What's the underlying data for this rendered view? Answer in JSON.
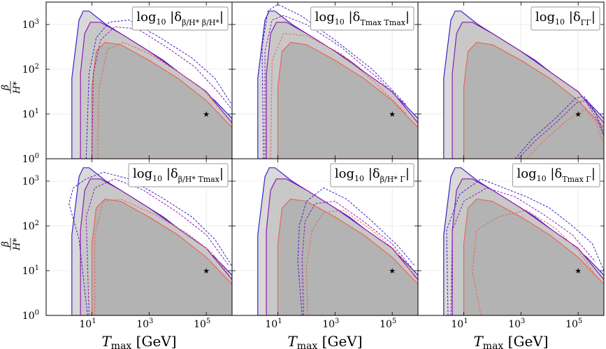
{
  "chart_data": {
    "type": "contour",
    "layout": "2 rows x 3 columns",
    "xlabel": "T_max [GeV]",
    "xlabel_main": "T",
    "xlabel_sub": "max",
    "xlabel_unit": "[GeV]",
    "ylabel": "β/H*",
    "ylabel_num": "β",
    "ylabel_den": "H*",
    "x_scale": "log10",
    "y_scale": "log10",
    "xlim_log10": [
      -0.6,
      5.9
    ],
    "ylim_log10": [
      0,
      3.5
    ],
    "x_ticks": [
      {
        "base": "10",
        "exp": "1",
        "log": 1
      },
      {
        "base": "10",
        "exp": "3",
        "log": 3
      },
      {
        "base": "10",
        "exp": "5",
        "log": 5
      }
    ],
    "y_ticks": [
      {
        "base": "10",
        "exp": "0",
        "log": 0
      },
      {
        "base": "10",
        "exp": "1",
        "log": 1
      },
      {
        "base": "10",
        "exp": "2",
        "log": 2
      },
      {
        "base": "10",
        "exp": "3",
        "log": 3
      }
    ],
    "benchmark_point_log10": [
      5,
      1
    ],
    "colors": {
      "fill_outer": "#d9d9d9",
      "fill_inner": "#c8c8c8",
      "fill_core": "#b3b3b3",
      "blue": "#3a22c8",
      "purple": "#8a1ab0",
      "red": "#e8665a",
      "grid": "#e6e6e6"
    },
    "regions": {
      "outer_solid_blue": [
        [
          0.3,
          0
        ],
        [
          0.3,
          1.8
        ],
        [
          0.55,
          3.1
        ],
        [
          0.7,
          3.3
        ],
        [
          0.9,
          3.3
        ],
        [
          1.5,
          3.0
        ],
        [
          2.5,
          2.6
        ],
        [
          3.5,
          2.2
        ],
        [
          4.5,
          1.7
        ],
        [
          5.3,
          1.3
        ],
        [
          5.9,
          0.9
        ],
        [
          5.9,
          0
        ]
      ],
      "middle_solid_purple": [
        [
          0.6,
          0
        ],
        [
          0.6,
          1.9
        ],
        [
          0.75,
          2.8
        ],
        [
          0.95,
          3.05
        ],
        [
          1.3,
          3.05
        ],
        [
          2,
          2.8
        ],
        [
          3,
          2.4
        ],
        [
          4,
          1.95
        ],
        [
          5,
          1.5
        ],
        [
          5.9,
          0.8
        ],
        [
          5.9,
          0
        ]
      ],
      "inner_solid_red": [
        [
          1.0,
          0
        ],
        [
          1.0,
          1.6
        ],
        [
          1.15,
          2.4
        ],
        [
          1.45,
          2.6
        ],
        [
          2.0,
          2.55
        ],
        [
          3,
          2.2
        ],
        [
          4,
          1.8
        ],
        [
          5,
          1.3
        ],
        [
          5.9,
          0.7
        ],
        [
          5.9,
          0
        ]
      ]
    },
    "panels": [
      {
        "title": "log10 |δ_(β/H*)(β/H*)|",
        "legend_main": "log",
        "legend_10": "10",
        "legend_delta": "|δ",
        "legend_sub": "β/H* β/H*",
        "legend_close": "|",
        "dashed": {
          "blue": [
            [
              0.8,
              0
            ],
            [
              0.9,
              1.9
            ],
            [
              1.15,
              2.7
            ],
            [
              1.6,
              3.05
            ],
            [
              2.3,
              3.1
            ],
            [
              3.4,
              2.7
            ],
            [
              4.5,
              2.25
            ],
            [
              5.3,
              1.8
            ],
            [
              5.9,
              1.2
            ]
          ],
          "purple": [
            [
              1.0,
              0
            ],
            [
              1.05,
              1.9
            ],
            [
              1.3,
              2.65
            ],
            [
              1.8,
              2.95
            ],
            [
              2.6,
              2.9
            ],
            [
              3.6,
              2.5
            ],
            [
              4.6,
              2.05
            ],
            [
              5.4,
              1.5
            ],
            [
              5.9,
              1.1
            ]
          ],
          "red": [
            [
              1.2,
              0
            ],
            [
              1.25,
              1.6
            ],
            [
              1.55,
              2.45
            ],
            [
              2.1,
              2.6
            ],
            [
              3,
              2.35
            ],
            [
              4,
              1.95
            ],
            [
              4.8,
              1.6
            ],
            [
              5.5,
              1.1
            ]
          ]
        }
      },
      {
        "title": "log10 |δ_(Tmax Tmax)|",
        "legend_main": "log",
        "legend_10": "10",
        "legend_delta": "|δ",
        "legend_sub": "Tmax Tmax",
        "legend_close": "|",
        "dashed": {
          "blue": [
            [
              0.5,
              0
            ],
            [
              0.45,
              2.5
            ],
            [
              0.65,
              3.3
            ],
            [
              1.0,
              3.45
            ],
            [
              1.8,
              3.2
            ],
            [
              3,
              2.65
            ],
            [
              4.3,
              2.0
            ],
            [
              5.5,
              1.2
            ]
          ],
          "purple": [
            [
              0.55,
              0
            ],
            [
              0.55,
              2.4
            ],
            [
              0.8,
              3.1
            ],
            [
              1.2,
              3.2
            ],
            [
              2,
              3.0
            ],
            [
              3.2,
              2.5
            ],
            [
              4.5,
              1.8
            ],
            [
              5.6,
              1.1
            ]
          ],
          "red": [
            [
              0.75,
              0
            ],
            [
              0.8,
              2.2
            ],
            [
              1.2,
              2.8
            ],
            [
              2,
              2.75
            ],
            [
              3.2,
              2.35
            ],
            [
              4.4,
              1.7
            ],
            [
              5.5,
              1.0
            ]
          ]
        }
      },
      {
        "title": "log10 |δ_(ΓΓ)|",
        "legend_main": "log",
        "legend_10": "10",
        "legend_delta": "|δ",
        "legend_sub": "ΓΓ",
        "legend_close": "|",
        "dashed": {
          "blue": [
            [
              2.8,
              0
            ],
            [
              3.4,
              0.45
            ],
            [
              4.2,
              0.9
            ],
            [
              4.9,
              1.35
            ],
            [
              5.2,
              1.4
            ],
            [
              5.6,
              1.05
            ],
            [
              5.9,
              0.55
            ]
          ],
          "purple": [
            [
              2.9,
              0
            ],
            [
              3.5,
              0.4
            ],
            [
              4.3,
              0.85
            ],
            [
              4.95,
              1.25
            ],
            [
              5.25,
              1.3
            ],
            [
              5.65,
              0.9
            ],
            [
              5.9,
              0.5
            ]
          ],
          "red": [
            [
              3.2,
              0
            ],
            [
              3.8,
              0.4
            ],
            [
              4.6,
              0.85
            ],
            [
              5.25,
              1.1
            ],
            [
              5.6,
              0.85
            ],
            [
              5.85,
              0.4
            ]
          ]
        }
      },
      {
        "title": "log10 |δ_(β/H* Tmax)|",
        "legend_main": "log",
        "legend_10": "10",
        "legend_delta": "|δ",
        "legend_sub": "β/H* Tmax",
        "legend_close": "|",
        "dashed": {
          "blue": [
            [
              0.85,
              0
            ],
            [
              0.55,
              1.7
            ],
            [
              0.2,
              2.5
            ],
            [
              0.35,
              2.85
            ],
            [
              0.8,
              3.05
            ],
            [
              1.4,
              3.2
            ],
            [
              2.3,
              3.05
            ],
            [
              3.4,
              2.65
            ],
            [
              4.5,
              2.2
            ],
            [
              5.3,
              1.7
            ],
            [
              5.9,
              1.1
            ]
          ],
          "purple": [
            [
              0.9,
              0
            ],
            [
              0.8,
              2.2
            ],
            [
              1.1,
              2.85
            ],
            [
              1.8,
              3.05
            ],
            [
              2.8,
              2.8
            ],
            [
              4,
              2.3
            ],
            [
              5,
              1.8
            ],
            [
              5.8,
              1.1
            ]
          ],
          "red": [
            [
              1.1,
              0
            ],
            [
              1.1,
              1.8
            ],
            [
              1.4,
              2.55
            ],
            [
              2.0,
              2.6
            ],
            [
              3.2,
              2.25
            ],
            [
              4.3,
              1.85
            ],
            [
              5.2,
              1.4
            ],
            [
              5.8,
              0.9
            ]
          ]
        }
      },
      {
        "title": "log10 |δ_(β/H* Γ)|",
        "legend_main": "log",
        "legend_10": "10",
        "legend_delta": "|δ",
        "legend_sub": "β/H* Γ",
        "legend_close": "|",
        "dashed": {
          "blue": [
            [
              1.85,
              0
            ],
            [
              1.7,
              1.2
            ],
            [
              1.75,
              2.0
            ],
            [
              2.0,
              2.55
            ],
            [
              2.6,
              2.85
            ],
            [
              3.4,
              2.6
            ],
            [
              4.3,
              2.1
            ],
            [
              5.2,
              1.55
            ],
            [
              5.8,
              1.1
            ]
          ],
          "purple": [
            [
              1.9,
              0
            ],
            [
              1.85,
              1.3
            ],
            [
              1.95,
              2.1
            ],
            [
              2.3,
              2.5
            ],
            [
              3.0,
              2.55
            ],
            [
              4.0,
              2.1
            ],
            [
              5.0,
              1.6
            ],
            [
              5.7,
              1.05
            ]
          ],
          "red": [
            [
              2.05,
              0
            ],
            [
              2.0,
              1.1
            ],
            [
              2.2,
              1.9
            ],
            [
              2.6,
              2.3
            ],
            [
              3.3,
              2.35
            ],
            [
              4.3,
              1.9
            ],
            [
              5.2,
              1.4
            ],
            [
              5.8,
              0.85
            ]
          ]
        }
      },
      {
        "title": "log10 |δ_(Tmax Γ)|",
        "legend_main": "log",
        "legend_10": "10",
        "legend_delta": "|δ",
        "legend_sub": "Tmax Γ",
        "legend_close": "|",
        "dashed": {
          "blue": [
            [
              0.45,
              0
            ],
            [
              0.4,
              1.9
            ],
            [
              0.85,
              2.7
            ],
            [
              1.6,
              3.05
            ],
            [
              2.4,
              2.85
            ],
            [
              3.2,
              2.65
            ],
            [
              4.0,
              2.4
            ],
            [
              4.8,
              2.0
            ],
            [
              5.5,
              1.6
            ],
            [
              5.9,
              1.0
            ]
          ],
          "purple": [
            [
              0.55,
              0
            ],
            [
              0.6,
              1.9
            ],
            [
              1.0,
              2.55
            ],
            [
              1.8,
              2.85
            ],
            [
              2.8,
              2.65
            ],
            [
              3.8,
              2.25
            ],
            [
              4.8,
              1.8
            ],
            [
              5.6,
              1.2
            ]
          ],
          "red": [
            [
              1.6,
              0
            ],
            [
              1.3,
              1.0
            ],
            [
              1.45,
              1.9
            ],
            [
              2.2,
              2.2
            ],
            [
              3.2,
              2.35
            ],
            [
              4.2,
              1.95
            ],
            [
              5.0,
              1.45
            ],
            [
              5.6,
              0.9
            ]
          ]
        }
      }
    ]
  }
}
